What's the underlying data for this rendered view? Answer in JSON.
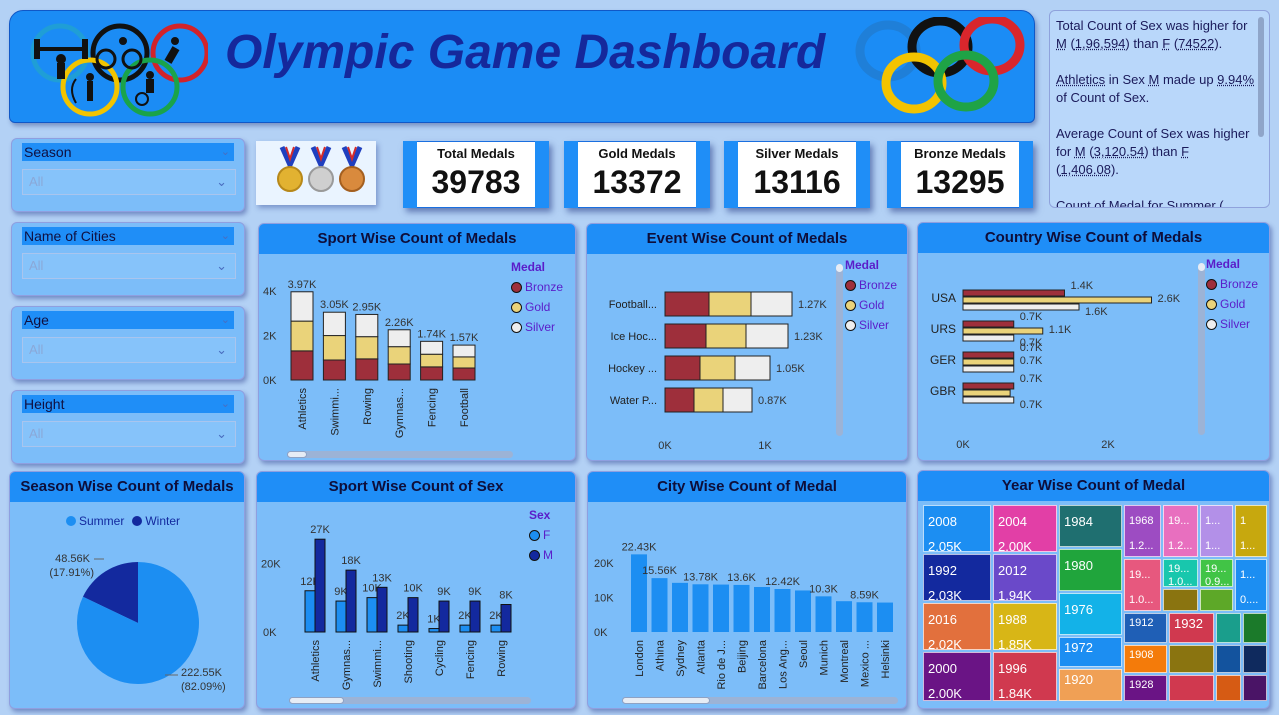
{
  "header": {
    "title": "Olympic Game Dashboard"
  },
  "narrative": {
    "p1": [
      "Total Count of Sex was higher for ",
      "M",
      " (",
      "1,96,594",
      ") than ",
      "F",
      " (",
      "74522",
      ")."
    ],
    "p2": [
      "Athletics",
      " in Sex ",
      "M",
      " made up ",
      "9.94%",
      " of Count of Sex."
    ],
    "p3": [
      "Average Count of Sex was higher for ",
      "M",
      " (",
      "3,120.54",
      ") than ",
      "F",
      " (",
      "1,406.08",
      "). "
    ],
    "p4": [
      "Count of Medal for ",
      "Summer",
      " ("
    ]
  },
  "slicers": [
    {
      "label": "Season",
      "value": "All"
    },
    {
      "label": "Name of Cities",
      "value": "All"
    },
    {
      "label": "Age",
      "value": "All"
    },
    {
      "label": "Height",
      "value": "All"
    }
  ],
  "cards": [
    {
      "label": "Total Medals",
      "value": "39783"
    },
    {
      "label": "Gold Medals",
      "value": "13372"
    },
    {
      "label": "Silver Medals",
      "value": "13116"
    },
    {
      "label": "Bronze Medals",
      "value": "13295"
    }
  ],
  "colors": {
    "bronze": "#9e2f3b",
    "gold": "#ead37a",
    "silver": "#eeeeee",
    "summer": "#1c8ef2",
    "winter": "#13299e",
    "m": "#13299e",
    "f": "#1c8ef2",
    "city": "#1c8ef2"
  },
  "titles": {
    "sport": "Sport Wise Count of Medals",
    "event": "Event Wise Count of Medals",
    "country": "Country Wise Count of Medals",
    "season": "Season Wise Count of Medals",
    "sex": "Sport Wise Count of Sex",
    "city": "City Wise Count of Medal",
    "year": "Year Wise Count of Medal"
  },
  "medal_legend": {
    "title": "Medal",
    "items": [
      "Bronze",
      "Gold",
      "Silver"
    ]
  },
  "sex_legend": {
    "title": "Sex",
    "items": [
      "F",
      "M"
    ]
  },
  "season_legend": {
    "items": [
      "Summer",
      "Winter"
    ]
  },
  "chart_data": [
    {
      "id": "sport",
      "type": "bar",
      "stacked": true,
      "title": "Sport Wise Count of Medals",
      "categories": [
        "Athletics",
        "Swimmi...",
        "Rowing",
        "Gymnas...",
        "Fencing",
        "Football"
      ],
      "totals_labels": [
        "3.97K",
        "3.05K",
        "2.95K",
        "2.26K",
        "1.74K",
        "1.57K"
      ],
      "series": [
        {
          "name": "Bronze",
          "values": [
            1310,
            900,
            950,
            720,
            590,
            540
          ]
        },
        {
          "name": "Gold",
          "values": [
            1340,
            1100,
            1000,
            780,
            570,
            500
          ]
        },
        {
          "name": "Silver",
          "values": [
            1320,
            1050,
            1000,
            760,
            580,
            530
          ]
        }
      ],
      "yticks": [
        "0K",
        "2K",
        "4K"
      ],
      "ylim": [
        0,
        4500
      ]
    },
    {
      "id": "event",
      "type": "bar",
      "orientation": "horizontal",
      "stacked": true,
      "title": "Event Wise Count of Medals",
      "categories": [
        "Football...",
        "Ice Hoc...",
        "Hockey ...",
        "Water P..."
      ],
      "totals_labels": [
        "1.27K",
        "1.23K",
        "1.05K",
        "0.87K"
      ],
      "series": [
        {
          "name": "Bronze",
          "values": [
            440,
            410,
            350,
            290
          ]
        },
        {
          "name": "Gold",
          "values": [
            420,
            400,
            350,
            290
          ]
        },
        {
          "name": "Silver",
          "values": [
            410,
            420,
            350,
            290
          ]
        }
      ],
      "xticks": [
        "0K",
        "1K"
      ],
      "xlim": [
        0,
        1300
      ]
    },
    {
      "id": "country",
      "type": "bar",
      "orientation": "horizontal",
      "title": "Country Wise Count of Medals",
      "categories": [
        "USA",
        "URS",
        "GER",
        "GBR"
      ],
      "series": [
        {
          "name": "Bronze",
          "values": [
            1400,
            700,
            700,
            700
          ],
          "labels": [
            "1.4K",
            "0.7K",
            "0.7K",
            "0.7K"
          ]
        },
        {
          "name": "Gold",
          "values": [
            2600,
            1100,
            700,
            650
          ],
          "labels": [
            "2.6K",
            "1.1K",
            "0.7K",
            ""
          ]
        },
        {
          "name": "Silver",
          "values": [
            1600,
            700,
            700,
            700
          ],
          "labels": [
            "1.6K",
            "0.7K",
            "",
            "0.7K"
          ]
        }
      ],
      "xticks": [
        "0K",
        "2K"
      ],
      "xlim": [
        0,
        3000
      ]
    },
    {
      "id": "season",
      "type": "pie",
      "title": "Season Wise Count of Medals",
      "slices": [
        {
          "name": "Summer",
          "value": 222550,
          "label": "222.55K",
          "pct": "(82.09%)"
        },
        {
          "name": "Winter",
          "value": 48560,
          "label": "48.56K",
          "pct": "(17.91%)"
        }
      ]
    },
    {
      "id": "sex",
      "type": "bar",
      "title": "Sport Wise Count of Sex",
      "categories": [
        "Athletics",
        "Gymnas...",
        "Swimmi...",
        "Shooting",
        "Cycling",
        "Fencing",
        "Rowing"
      ],
      "series": [
        {
          "name": "F",
          "values": [
            12000,
            9000,
            10000,
            2000,
            1000,
            2000,
            2000
          ],
          "labels": [
            "12K",
            "9K",
            "10K",
            "2K",
            "1K",
            "2K",
            "2K"
          ]
        },
        {
          "name": "M",
          "values": [
            27000,
            18000,
            13000,
            10000,
            9000,
            9000,
            8000
          ],
          "labels": [
            "27K",
            "18K",
            "13K",
            "10K",
            "9K",
            "9K",
            "8K"
          ]
        }
      ],
      "yticks": [
        "0K",
        "20K"
      ],
      "ylim": [
        0,
        32000
      ]
    },
    {
      "id": "city",
      "type": "bar",
      "title": "City Wise Count of Medal",
      "categories": [
        "London",
        "Athina",
        "Sydney",
        "Atlanta",
        "Rio de J...",
        "Beijing",
        "Barcelona",
        "Los Ang...",
        "Seoul",
        "Munich",
        "Montreal",
        "Mexico ...",
        "Helsinki"
      ],
      "values": [
        22430,
        15560,
        14200,
        13780,
        13700,
        13600,
        13000,
        12420,
        12000,
        10300,
        8900,
        8590,
        8500
      ],
      "labels": [
        "22.43K",
        "15.56K",
        "",
        "13.78K",
        "",
        "13.6K",
        "",
        "12.42K",
        "",
        "10.3K",
        "",
        "8.59K",
        ""
      ],
      "yticks": [
        "0K",
        "10K",
        "20K"
      ],
      "ylim": [
        0,
        26000
      ]
    },
    {
      "id": "year",
      "type": "heatmap",
      "title": "Year Wise Count of Medal",
      "tiles": [
        {
          "year": "2008",
          "value": "2.05K"
        },
        {
          "year": "1992",
          "value": "2.03K"
        },
        {
          "year": "2016",
          "value": "2.02K"
        },
        {
          "year": "2000",
          "value": "2.00K"
        },
        {
          "year": "2004",
          "value": "2.00K"
        },
        {
          "year": "2012",
          "value": "1.94K"
        },
        {
          "year": "1988",
          "value": "1.85K"
        },
        {
          "year": "1996",
          "value": "1.84K"
        },
        {
          "year": "1984",
          "value": ""
        },
        {
          "year": "1980",
          "value": ""
        },
        {
          "year": "1976",
          "value": ""
        },
        {
          "year": "1972",
          "value": ""
        },
        {
          "year": "1920",
          "value": ""
        },
        {
          "year": "1968",
          "value": "1.2..."
        },
        {
          "year": "19...",
          "value": "1.2..."
        },
        {
          "year": "1...",
          "value": "1..."
        },
        {
          "year": "1",
          "value": "1..."
        },
        {
          "year": "19...",
          "value": "1.0..."
        },
        {
          "year": "19...",
          "value": "1.0..."
        },
        {
          "year": "19...",
          "value": "0.9..."
        },
        {
          "year": "1...",
          "value": "0...."
        },
        {
          "year": "1912",
          "value": ""
        },
        {
          "year": "1932",
          "value": ""
        },
        {
          "year": "1908",
          "value": ""
        },
        {
          "year": "1928",
          "value": ""
        }
      ]
    }
  ]
}
